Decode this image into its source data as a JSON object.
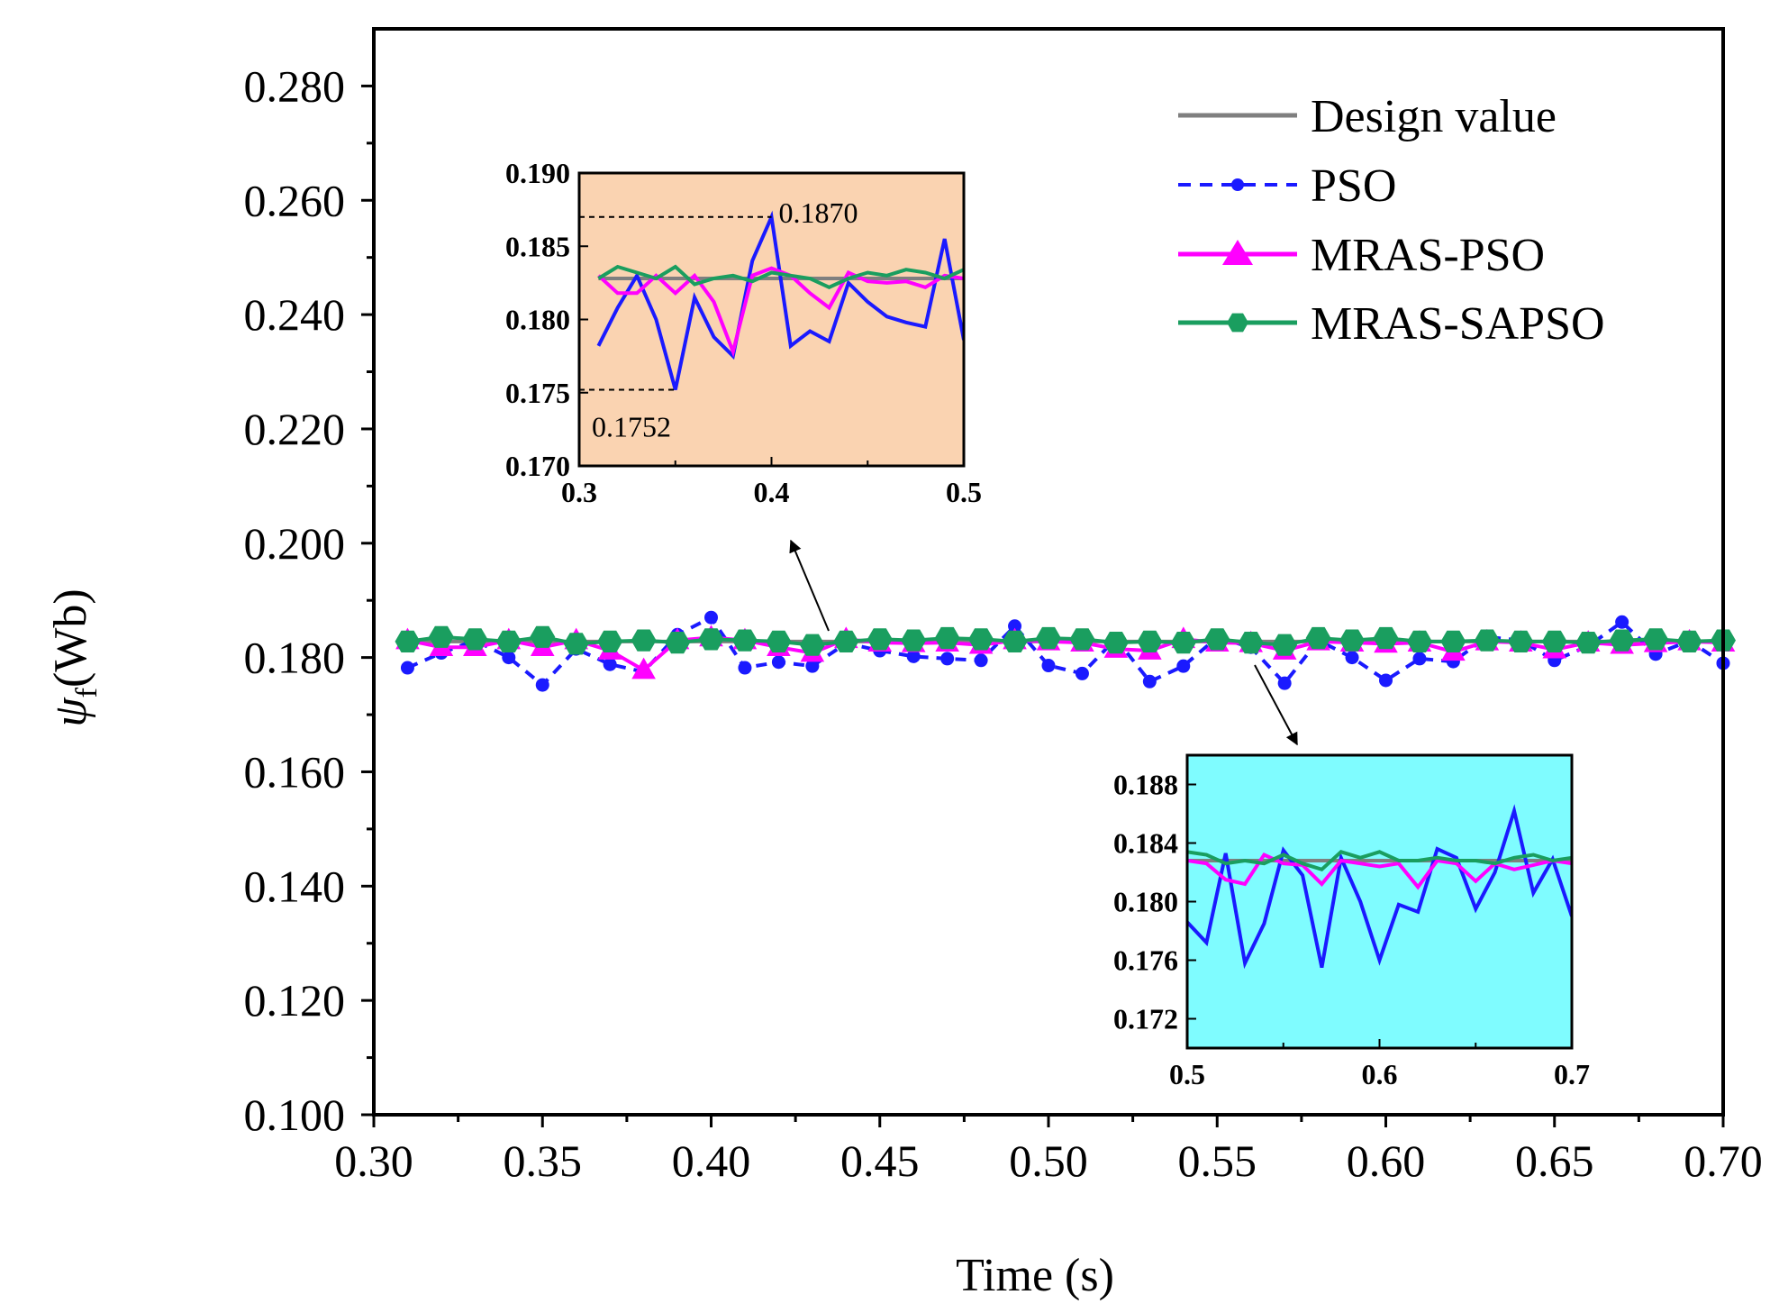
{
  "chart_data": {
    "type": "line",
    "title": "",
    "xlabel": "Time (s)",
    "ylabel": "ψf(Wb)",
    "ylabel_main": "ψ",
    "ylabel_sub": "f",
    "ylabel_unit": "(Wb)",
    "xlim": [
      0.3,
      0.7
    ],
    "ylim": [
      0.1,
      0.29
    ],
    "x_ticks": [
      0.3,
      0.35,
      0.4,
      0.45,
      0.5,
      0.55,
      0.6,
      0.65,
      0.7
    ],
    "x_tick_labels": [
      "0.30",
      "0.35",
      "0.40",
      "0.45",
      "0.50",
      "0.55",
      "0.60",
      "0.65",
      "0.70"
    ],
    "y_ticks": [
      0.1,
      0.12,
      0.14,
      0.16,
      0.18,
      0.2,
      0.22,
      0.24,
      0.26,
      0.28
    ],
    "y_tick_labels": [
      "0.100",
      "0.120",
      "0.140",
      "0.160",
      "0.180",
      "0.200",
      "0.220",
      "0.240",
      "0.260",
      "0.280"
    ],
    "legend_position": "top-right",
    "x": [
      0.31,
      0.32,
      0.33,
      0.34,
      0.35,
      0.36,
      0.37,
      0.38,
      0.39,
      0.4,
      0.41,
      0.42,
      0.43,
      0.44,
      0.45,
      0.46,
      0.47,
      0.48,
      0.49,
      0.5,
      0.51,
      0.52,
      0.53,
      0.54,
      0.55,
      0.56,
      0.57,
      0.58,
      0.59,
      0.6,
      0.61,
      0.62,
      0.63,
      0.64,
      0.65,
      0.66,
      0.67,
      0.68,
      0.69,
      0.7
    ],
    "series": [
      {
        "name": "Design value",
        "color": "#7f7f7f",
        "style": "solid",
        "marker": "none",
        "constant": 0.1828
      },
      {
        "name": "PSO",
        "color": "#1a1aff",
        "style": "dashed",
        "marker": "circle",
        "values": [
          0.1782,
          0.1808,
          0.183,
          0.18,
          0.1752,
          0.1815,
          0.1788,
          0.1775,
          0.184,
          0.187,
          0.1782,
          0.1792,
          0.1785,
          0.1825,
          0.1812,
          0.1802,
          0.1798,
          0.1795,
          0.1855,
          0.1786,
          0.1772,
          0.1833,
          0.1758,
          0.1785,
          0.1835,
          0.1818,
          0.1755,
          0.183,
          0.18,
          0.176,
          0.1798,
          0.1793,
          0.1836,
          0.183,
          0.1795,
          0.182,
          0.1862,
          0.1806,
          0.1829,
          0.179
        ]
      },
      {
        "name": "MRAS-PSO",
        "color": "#ff00ff",
        "style": "solid",
        "marker": "triangle",
        "values": [
          0.183,
          0.1818,
          0.1818,
          0.183,
          0.1818,
          0.183,
          0.1812,
          0.1778,
          0.183,
          0.1835,
          0.183,
          0.1818,
          0.1808,
          0.1832,
          0.1826,
          0.1825,
          0.1826,
          0.1822,
          0.183,
          0.1828,
          0.1826,
          0.1815,
          0.1812,
          0.1832,
          0.1826,
          0.1825,
          0.1812,
          0.1828,
          0.1826,
          0.1824,
          0.1826,
          0.181,
          0.1828,
          0.1826,
          0.1814,
          0.1826,
          0.1822,
          0.1825,
          0.1828,
          0.1826
        ]
      },
      {
        "name": "MRAS-SAPSO",
        "color": "#1a9e5f",
        "style": "solid",
        "marker": "hexagon",
        "values": [
          0.1828,
          0.1836,
          0.1832,
          0.1828,
          0.1836,
          0.1824,
          0.1828,
          0.183,
          0.1826,
          0.1832,
          0.183,
          0.1828,
          0.1822,
          0.1828,
          0.1832,
          0.183,
          0.1834,
          0.1832,
          0.1828,
          0.1834,
          0.1832,
          0.1826,
          0.1828,
          0.1826,
          0.1832,
          0.1826,
          0.1822,
          0.1834,
          0.183,
          0.1834,
          0.1828,
          0.1828,
          0.183,
          0.1828,
          0.1828,
          0.1826,
          0.183,
          0.1832,
          0.1828,
          0.183
        ]
      }
    ],
    "insets": [
      {
        "name": "zoom-0.3-0.5",
        "background": "#fad3b1",
        "xlim": [
          0.3,
          0.5
        ],
        "ylim": [
          0.17,
          0.19
        ],
        "x_ticks": [
          0.3,
          0.4,
          0.5
        ],
        "x_tick_labels": [
          "0.3",
          "0.4",
          "0.5"
        ],
        "y_ticks": [
          0.17,
          0.175,
          0.18,
          0.185,
          0.19
        ],
        "y_tick_labels": [
          "0.170",
          "0.175",
          "0.180",
          "0.185",
          "0.190"
        ],
        "annotations": [
          {
            "text": "0.1870",
            "x": 0.4,
            "y": 0.187,
            "type": "max"
          },
          {
            "text": "0.1752",
            "x": 0.35,
            "y": 0.1752,
            "type": "min"
          }
        ]
      },
      {
        "name": "zoom-0.5-0.7",
        "background": "#7ffcff",
        "xlim": [
          0.5,
          0.7
        ],
        "ylim": [
          0.17,
          0.19
        ],
        "x_ticks": [
          0.5,
          0.6,
          0.7
        ],
        "x_tick_labels": [
          "0.5",
          "0.6",
          "0.7"
        ],
        "y_ticks": [
          0.172,
          0.176,
          0.18,
          0.184,
          0.188
        ],
        "y_tick_labels": [
          "0.172",
          "0.176",
          "0.180",
          "0.184",
          "0.188"
        ],
        "annotations": []
      }
    ]
  }
}
